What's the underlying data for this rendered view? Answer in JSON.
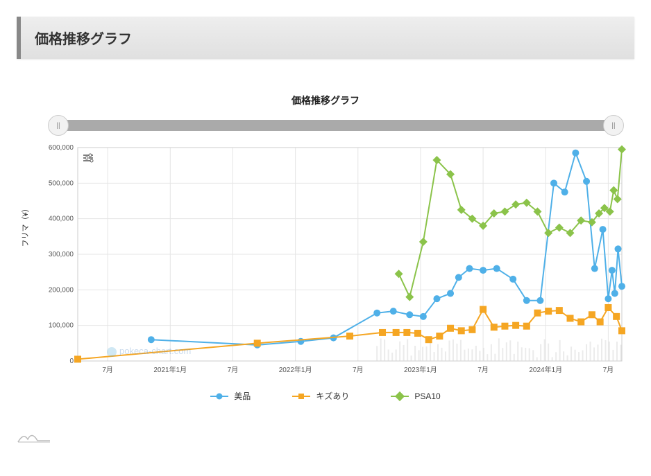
{
  "header": {
    "title": "価格推移グラフ"
  },
  "chart": {
    "title": "価格推移グラフ",
    "type": "line",
    "ylabel": "フリマ（¥）",
    "ylim": [
      0,
      600000
    ],
    "ytick_step": 100000,
    "yticks": [
      "0",
      "100,000",
      "200,000",
      "300,000",
      "400,000",
      "500,000",
      "600,000"
    ],
    "xticks": [
      {
        "label": "7月",
        "pos": 0.055
      },
      {
        "label": "2021年1月",
        "pos": 0.17
      },
      {
        "label": "7月",
        "pos": 0.285
      },
      {
        "label": "2022年1月",
        "pos": 0.4
      },
      {
        "label": "7月",
        "pos": 0.515
      },
      {
        "label": "2023年1月",
        "pos": 0.63
      },
      {
        "label": "7月",
        "pos": 0.745
      },
      {
        "label": "2024年1月",
        "pos": 0.86
      },
      {
        "label": "7月",
        "pos": 0.975
      }
    ],
    "background_color": "#ffffff",
    "grid_color": "#e5e5e5",
    "axis_color": "#cccccc",
    "tick_font_size": 10,
    "label_font_size": 11,
    "title_font_size": 14,
    "line_width": 2,
    "marker_size": 5,
    "series": [
      {
        "name": "美品",
        "color": "#4fb0e8",
        "marker": "circle",
        "points": [
          [
            0.135,
            60000
          ],
          [
            0.33,
            45000
          ],
          [
            0.41,
            55000
          ],
          [
            0.47,
            65000
          ],
          [
            0.55,
            135000
          ],
          [
            0.58,
            140000
          ],
          [
            0.61,
            130000
          ],
          [
            0.635,
            125000
          ],
          [
            0.66,
            175000
          ],
          [
            0.685,
            190000
          ],
          [
            0.7,
            235000
          ],
          [
            0.72,
            260000
          ],
          [
            0.745,
            255000
          ],
          [
            0.77,
            260000
          ],
          [
            0.8,
            230000
          ],
          [
            0.825,
            170000
          ],
          [
            0.85,
            170000
          ],
          [
            0.875,
            500000
          ],
          [
            0.895,
            475000
          ],
          [
            0.915,
            585000
          ],
          [
            0.935,
            505000
          ],
          [
            0.95,
            260000
          ],
          [
            0.965,
            370000
          ],
          [
            0.975,
            175000
          ],
          [
            0.982,
            255000
          ],
          [
            0.987,
            190000
          ],
          [
            0.993,
            315000
          ],
          [
            1.0,
            210000
          ]
        ]
      },
      {
        "name": "キズあり",
        "color": "#f5a623",
        "marker": "square",
        "points": [
          [
            0.0,
            5000
          ],
          [
            0.33,
            50000
          ],
          [
            0.5,
            70000
          ],
          [
            0.56,
            80000
          ],
          [
            0.585,
            80000
          ],
          [
            0.605,
            80000
          ],
          [
            0.625,
            78000
          ],
          [
            0.645,
            60000
          ],
          [
            0.665,
            70000
          ],
          [
            0.685,
            92000
          ],
          [
            0.705,
            85000
          ],
          [
            0.725,
            88000
          ],
          [
            0.745,
            145000
          ],
          [
            0.765,
            95000
          ],
          [
            0.785,
            98000
          ],
          [
            0.805,
            100000
          ],
          [
            0.825,
            98000
          ],
          [
            0.845,
            135000
          ],
          [
            0.865,
            140000
          ],
          [
            0.885,
            142000
          ],
          [
            0.905,
            120000
          ],
          [
            0.925,
            110000
          ],
          [
            0.945,
            130000
          ],
          [
            0.96,
            110000
          ],
          [
            0.975,
            150000
          ],
          [
            0.99,
            125000
          ],
          [
            1.0,
            85000
          ]
        ]
      },
      {
        "name": "PSA10",
        "color": "#8bc34a",
        "marker": "diamond",
        "points": [
          [
            0.59,
            245000
          ],
          [
            0.61,
            180000
          ],
          [
            0.635,
            335000
          ],
          [
            0.66,
            565000
          ],
          [
            0.685,
            525000
          ],
          [
            0.705,
            425000
          ],
          [
            0.725,
            400000
          ],
          [
            0.745,
            380000
          ],
          [
            0.765,
            415000
          ],
          [
            0.785,
            420000
          ],
          [
            0.805,
            440000
          ],
          [
            0.825,
            445000
          ],
          [
            0.845,
            420000
          ],
          [
            0.865,
            360000
          ],
          [
            0.885,
            375000
          ],
          [
            0.905,
            360000
          ],
          [
            0.925,
            395000
          ],
          [
            0.945,
            390000
          ],
          [
            0.958,
            415000
          ],
          [
            0.968,
            430000
          ],
          [
            0.978,
            420000
          ],
          [
            0.985,
            480000
          ],
          [
            0.992,
            455000
          ],
          [
            1.0,
            595000
          ]
        ]
      }
    ],
    "legend_labels": {
      "bihin": "美品",
      "kizu": "キズあり",
      "psa": "PSA10"
    },
    "watermark": "pokeca-chart.com"
  },
  "colors": {
    "bihin": "#4fb0e8",
    "kizu": "#f5a623",
    "psa": "#8bc34a"
  }
}
